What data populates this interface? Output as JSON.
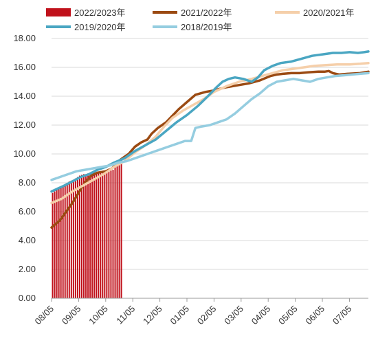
{
  "chart_data": {
    "type": "bar",
    "y_ticks": [
      "0.00",
      "2.00",
      "4.00",
      "6.00",
      "8.00",
      "10.00",
      "12.00",
      "14.00",
      "16.00",
      "18.00"
    ],
    "ylim": [
      0,
      18
    ],
    "x_ticks": [
      "08/05",
      "09/05",
      "10/05",
      "11/05",
      "12/05",
      "01/05",
      "02/05",
      "03/05",
      "04/05",
      "05/05",
      "06/05",
      "07/05"
    ],
    "grid": "horizontal",
    "legend": [
      {
        "name": "2022/2023年",
        "color": "#c0111b",
        "kind": "bar"
      },
      {
        "name": "2021/2022年",
        "color": "#9b4a12",
        "kind": "line"
      },
      {
        "name": "2020/2021年",
        "color": "#f5cfaa",
        "kind": "line"
      },
      {
        "name": "2019/2020年",
        "color": "#4aa6c2",
        "kind": "line"
      },
      {
        "name": "2018/2019年",
        "color": "#95cde0",
        "kind": "line"
      }
    ],
    "bars": {
      "name": "2022/2023年",
      "week_start": 0,
      "values": [
        7.3,
        7.4,
        7.5,
        7.6,
        7.7,
        7.8,
        7.9,
        8.0,
        8.1,
        8.15,
        8.2,
        8.3,
        8.4,
        8.5,
        8.55,
        8.6,
        8.6,
        8.65,
        8.7,
        8.7,
        8.7,
        8.7,
        8.72,
        8.75,
        8.78,
        8.8,
        8.8,
        8.85,
        8.85,
        8.9,
        9.1,
        9.3,
        9.5,
        9.7
      ]
    },
    "series": [
      {
        "name": "2021/2022年",
        "color": "#9b4a12",
        "weeks": [
          0,
          4,
          7,
          10,
          13,
          16,
          19,
          22,
          26,
          29,
          33,
          37,
          40,
          43,
          46,
          48,
          51,
          55,
          57,
          61,
          65,
          69,
          74,
          78,
          83,
          87,
          91,
          95,
          100,
          105,
          108,
          111,
          115,
          119,
          123,
          128,
          131,
          133,
          135,
          138,
          142,
          148,
          152
        ],
        "values": [
          4.9,
          5.4,
          6.0,
          6.6,
          7.3,
          8.0,
          8.5,
          8.7,
          8.8,
          9.0,
          9.6,
          10.0,
          10.5,
          10.8,
          11.0,
          11.4,
          11.8,
          12.2,
          12.5,
          13.1,
          13.6,
          14.1,
          14.3,
          14.4,
          14.6,
          14.7,
          14.8,
          14.9,
          15.1,
          15.4,
          15.5,
          15.55,
          15.6,
          15.6,
          15.65,
          15.7,
          15.7,
          15.75,
          15.6,
          15.5,
          15.55,
          15.6,
          15.7
        ]
      },
      {
        "name": "2020/2021年",
        "color": "#f5cfaa",
        "weeks": [
          0,
          5,
          10,
          15,
          20,
          25,
          30,
          35,
          40,
          45,
          50,
          54,
          58,
          63,
          68,
          73,
          78,
          84,
          90,
          96,
          101,
          106,
          111,
          116,
          121,
          126,
          131,
          137,
          143,
          148,
          152
        ],
        "values": [
          6.6,
          6.9,
          7.4,
          7.8,
          8.2,
          8.6,
          9.1,
          9.5,
          10.1,
          10.6,
          11.2,
          11.9,
          12.5,
          13.0,
          13.4,
          13.8,
          14.3,
          14.7,
          15.0,
          15.2,
          15.4,
          15.6,
          15.8,
          15.9,
          16.0,
          16.1,
          16.15,
          16.2,
          16.2,
          16.25,
          16.3
        ]
      },
      {
        "name": "2019/2020年",
        "color": "#4aa6c2",
        "weeks": [
          0,
          3,
          6,
          10,
          14,
          18,
          22,
          26,
          30,
          35,
          40,
          45,
          50,
          55,
          60,
          65,
          70,
          75,
          79,
          82,
          85,
          88,
          92,
          96,
          99,
          102,
          106,
          110,
          115,
          120,
          125,
          130,
          135,
          139,
          143,
          147,
          150,
          152
        ],
        "values": [
          7.4,
          7.6,
          7.8,
          8.1,
          8.4,
          8.6,
          8.9,
          9.1,
          9.4,
          9.7,
          10.2,
          10.6,
          11.0,
          11.6,
          12.2,
          12.7,
          13.3,
          14.0,
          14.6,
          15.0,
          15.2,
          15.3,
          15.2,
          15.0,
          15.3,
          15.8,
          16.1,
          16.3,
          16.4,
          16.6,
          16.8,
          16.9,
          17.0,
          17.0,
          17.05,
          17.0,
          17.05,
          17.1
        ]
      },
      {
        "name": "2018/2019年",
        "color": "#95cde0",
        "weeks": [
          0,
          4,
          8,
          12,
          16,
          20,
          24,
          28,
          32,
          36,
          40,
          44,
          48,
          52,
          56,
          60,
          64,
          67,
          69,
          72,
          76,
          80,
          84,
          88,
          92,
          96,
          100,
          104,
          108,
          112,
          116,
          120,
          124,
          128,
          132,
          136,
          140,
          144,
          148,
          152
        ],
        "values": [
          8.2,
          8.4,
          8.6,
          8.8,
          8.9,
          9.0,
          9.1,
          9.2,
          9.4,
          9.5,
          9.7,
          9.9,
          10.1,
          10.3,
          10.5,
          10.7,
          10.9,
          10.9,
          11.8,
          11.9,
          12.0,
          12.2,
          12.4,
          12.8,
          13.3,
          13.8,
          14.2,
          14.7,
          15.0,
          15.1,
          15.2,
          15.1,
          15.0,
          15.2,
          15.3,
          15.4,
          15.45,
          15.5,
          15.55,
          15.6
        ]
      }
    ]
  }
}
